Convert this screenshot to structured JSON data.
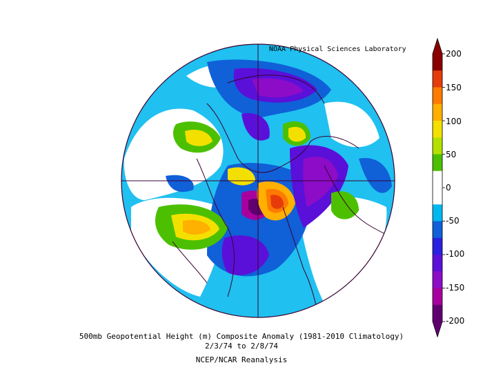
{
  "credit": "NOAA Physical Sciences Laboratory",
  "caption": {
    "title": "500mb Geopotential Height (m) Composite Anomaly (1981-2010 Climatology)",
    "dates": "2/3/74   to 2/8/74",
    "source": "NCEP/NCAR Reanalysis"
  },
  "colorbar": {
    "ticks": [
      "200",
      "150",
      "100",
      "50",
      "0",
      "-50",
      "-100",
      "-150",
      "-200"
    ],
    "colors": [
      "#8a0000",
      "#e63c0c",
      "#ff7a00",
      "#ffb000",
      "#f4e000",
      "#b4e000",
      "#4cc000",
      "#ffffff",
      "#ffffff",
      "#00b8f0",
      "#1060d8",
      "#2a20e0",
      "#5a10d8",
      "#8c0cc8",
      "#a8009e",
      "#600070"
    ]
  }
}
